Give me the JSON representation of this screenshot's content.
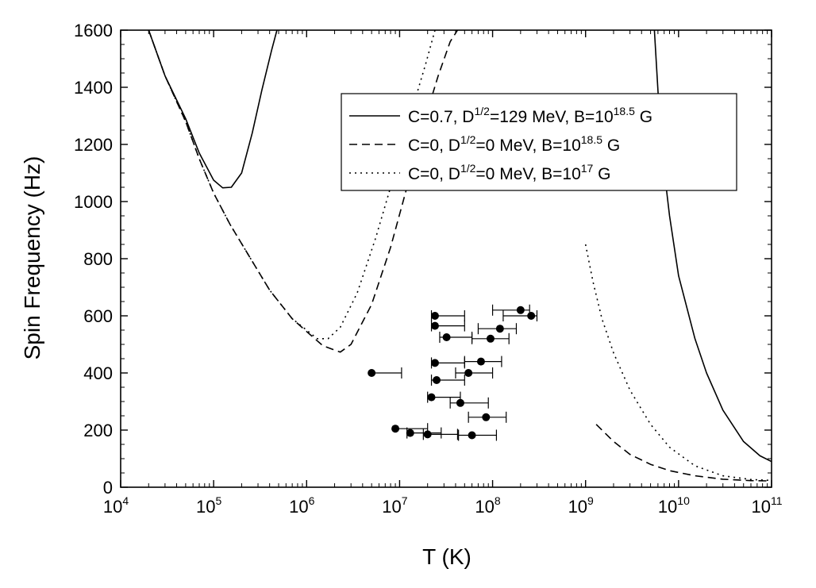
{
  "chart_data": {
    "type": "line",
    "xlabel": "T (K)",
    "ylabel": "Spin Frequency (Hz)",
    "x_scale": "log",
    "xlim": [
      10000,
      100000000000
    ],
    "ylim": [
      0,
      1600
    ],
    "x_ticks": [
      {
        "value": 10000,
        "base": "10",
        "exp": "4"
      },
      {
        "value": 100000,
        "base": "10",
        "exp": "5"
      },
      {
        "value": 1000000,
        "base": "10",
        "exp": "6"
      },
      {
        "value": 10000000,
        "base": "10",
        "exp": "7"
      },
      {
        "value": 100000000,
        "base": "10",
        "exp": "8"
      },
      {
        "value": 1000000000,
        "base": "10",
        "exp": "9"
      },
      {
        "value": 10000000000,
        "base": "10",
        "exp": "10"
      },
      {
        "value": 100000000000,
        "base": "10",
        "exp": "11"
      }
    ],
    "y_ticks": [
      "0",
      "200",
      "400",
      "600",
      "800",
      "1000",
      "1200",
      "1400",
      "1600"
    ],
    "y_tick_values": [
      0,
      200,
      400,
      600,
      800,
      1000,
      1200,
      1400,
      1600
    ],
    "legend_position": "top-right",
    "series": [
      {
        "style": "solid",
        "legend": {
          "prefix": "C=0.7, D",
          "sup1": "1/2",
          "mid": "=129 MeV, B=10",
          "sup2": "18.5",
          "suffix": " G"
        },
        "segments": [
          [
            [
              20000,
              1600
            ],
            [
              30000,
              1440
            ],
            [
              50000,
              1290
            ],
            [
              70000,
              1170
            ],
            [
              100000,
              1075
            ],
            [
              125000,
              1048
            ],
            [
              155000,
              1050
            ],
            [
              200000,
              1100
            ],
            [
              260000,
              1240
            ],
            [
              330000,
              1390
            ],
            [
              420000,
              1530
            ],
            [
              480000,
              1600
            ]
          ],
          [
            [
              5500000000,
              1600
            ],
            [
              6500000000,
              1200
            ],
            [
              8000000000,
              950
            ],
            [
              10000000000,
              740
            ],
            [
              15000000000,
              520
            ],
            [
              20000000000,
              400
            ],
            [
              30000000000,
              270
            ],
            [
              50000000000,
              160
            ],
            [
              75000000000,
              110
            ],
            [
              100000000000,
              90
            ]
          ]
        ]
      },
      {
        "style": "dashed",
        "legend": {
          "prefix": "C=0, D",
          "sup1": "1/2",
          "mid": "=0 MeV, B=10",
          "sup2": "18.5",
          "suffix": " G"
        },
        "segments": [
          [
            [
              20000,
              1600
            ],
            [
              30000,
              1440
            ],
            [
              50000,
              1280
            ],
            [
              70000,
              1150
            ],
            [
              100000,
              1030
            ],
            [
              150000,
              920
            ],
            [
              250000,
              800
            ],
            [
              400000,
              690
            ],
            [
              700000,
              590
            ],
            [
              1000000,
              545
            ],
            [
              1500000,
              495
            ],
            [
              2300000,
              473
            ],
            [
              3000000,
              500
            ],
            [
              5000000,
              640
            ],
            [
              8000000,
              840
            ],
            [
              12000000,
              1050
            ],
            [
              18000000,
              1270
            ],
            [
              26000000,
              1440
            ],
            [
              35000000,
              1560
            ],
            [
              42000000,
              1600
            ]
          ],
          [
            [
              1300000000,
              220
            ],
            [
              2000000000,
              160
            ],
            [
              3000000000,
              115
            ],
            [
              5000000000,
              80
            ],
            [
              8000000000,
              58
            ],
            [
              15000000000,
              40
            ],
            [
              30000000000,
              28
            ],
            [
              60000000000,
              23
            ],
            [
              100000000000,
              22
            ]
          ]
        ]
      },
      {
        "style": "dotted",
        "legend": {
          "prefix": "C=0, D",
          "sup1": "1/2",
          "mid": "=0 MeV, B=10",
          "sup2": "17",
          "suffix": " G"
        },
        "segments": [
          [
            [
              20000,
              1600
            ],
            [
              30000,
              1440
            ],
            [
              50000,
              1280
            ],
            [
              70000,
              1150
            ],
            [
              100000,
              1030
            ],
            [
              150000,
              920
            ],
            [
              250000,
              800
            ],
            [
              400000,
              690
            ],
            [
              700000,
              590
            ],
            [
              1000000,
              550
            ],
            [
              1300000,
              520
            ],
            [
              1700000,
              520
            ],
            [
              2300000,
              560
            ],
            [
              3500000,
              680
            ],
            [
              5500000,
              870
            ],
            [
              8500000,
              1080
            ],
            [
              13000000,
              1300
            ],
            [
              19000000,
              1480
            ],
            [
              24000000,
              1600
            ]
          ],
          [
            [
              1000000000,
              850
            ],
            [
              1200000000,
              720
            ],
            [
              1500000000,
              590
            ],
            [
              2000000000,
              470
            ],
            [
              3000000000,
              340
            ],
            [
              5000000000,
              220
            ],
            [
              8000000000,
              140
            ],
            [
              15000000000,
              75
            ],
            [
              30000000000,
              40
            ],
            [
              60000000000,
              27
            ],
            [
              100000000000,
              24
            ]
          ]
        ]
      }
    ],
    "data_points": [
      {
        "x": 200000000,
        "y": 620,
        "xlo": 100000000,
        "xhi": 250000000
      },
      {
        "x": 260000000,
        "y": 600,
        "xlo": 130000000,
        "xhi": 300000000
      },
      {
        "x": 24000000,
        "y": 600,
        "xlo": 22000000,
        "xhi": 50000000
      },
      {
        "x": 24000000,
        "y": 565,
        "xlo": 22000000,
        "xhi": 50000000
      },
      {
        "x": 120000000,
        "y": 555,
        "xlo": 70000000,
        "xhi": 180000000
      },
      {
        "x": 32000000,
        "y": 525,
        "xlo": 27000000,
        "xhi": 60000000
      },
      {
        "x": 95000000,
        "y": 520,
        "xlo": 60000000,
        "xhi": 150000000
      },
      {
        "x": 24000000,
        "y": 435,
        "xlo": 22000000,
        "xhi": 50000000
      },
      {
        "x": 75000000,
        "y": 440,
        "xlo": 50000000,
        "xhi": 125000000
      },
      {
        "x": 5000000,
        "y": 400,
        "xlo": 5000000,
        "xhi": 10500000
      },
      {
        "x": 55000000,
        "y": 400,
        "xlo": 40000000,
        "xhi": 100000000
      },
      {
        "x": 25000000,
        "y": 375,
        "xlo": 22000000,
        "xhi": 50000000
      },
      {
        "x": 22000000,
        "y": 315,
        "xlo": 20000000,
        "xhi": 45000000
      },
      {
        "x": 45000000,
        "y": 295,
        "xlo": 35000000,
        "xhi": 90000000
      },
      {
        "x": 85000000,
        "y": 245,
        "xlo": 55000000,
        "xhi": 140000000
      },
      {
        "x": 9000000,
        "y": 205,
        "xlo": 9000000,
        "xhi": 20000000
      },
      {
        "x": 13000000,
        "y": 190,
        "xlo": 12000000,
        "xhi": 28000000
      },
      {
        "x": 20000000,
        "y": 185,
        "xlo": 18000000,
        "xhi": 42000000
      },
      {
        "x": 60000000,
        "y": 182,
        "xlo": 43000000,
        "xhi": 110000000
      }
    ]
  }
}
